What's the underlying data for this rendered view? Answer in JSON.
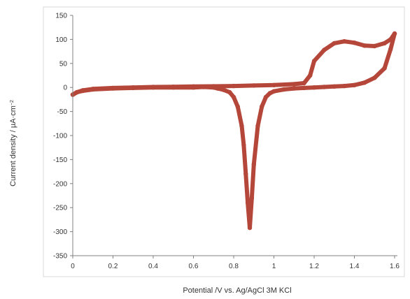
{
  "chart_data": {
    "type": "line",
    "title": "",
    "xlabel": "Potential /V vs. Ag/AgCl 3M KCl",
    "ylabel": "Current density / µA·cm",
    "ylabel_superscript": "−2",
    "xlim": [
      0,
      1.7
    ],
    "ylim": [
      -350,
      150
    ],
    "x_ticks": [
      0,
      0.2,
      0.4,
      0.6,
      0.8,
      1,
      1.2,
      1.4,
      1.6
    ],
    "x_tick_labels": [
      "0",
      "0.2",
      "0.4",
      "0.6",
      "0.8",
      "1",
      "1.2",
      "1.4",
      "1.6"
    ],
    "y_ticks": [
      150,
      100,
      50,
      0,
      -50,
      -100,
      -150,
      -200,
      -250,
      -300,
      -350
    ],
    "y_tick_labels": [
      "150",
      "100",
      "50",
      "0",
      "-50",
      "-100",
      "-150",
      "-200",
      "-250",
      "-300",
      "-350"
    ],
    "grid": false,
    "legend": "none",
    "colors": {
      "series": "#b5473a",
      "axis": "#808080",
      "frame": "#d9d9d9"
    },
    "series": [
      {
        "sweep": "anodic",
        "x": [
          0.0,
          0.02,
          0.05,
          0.1,
          0.2,
          0.3,
          0.4,
          0.5,
          0.6,
          0.7,
          0.8,
          0.9,
          1.0,
          1.1,
          1.15,
          1.18,
          1.2,
          1.25,
          1.3,
          1.35,
          1.4,
          1.45,
          1.5,
          1.55,
          1.58,
          1.6
        ],
        "y": [
          -15,
          -10,
          -6,
          -3,
          -1,
          0,
          1,
          1.5,
          2,
          2.5,
          3,
          4,
          5,
          7,
          9,
          25,
          55,
          78,
          92,
          96,
          93,
          87,
          86,
          92,
          100,
          112
        ]
      },
      {
        "sweep": "cathodic",
        "x": [
          1.6,
          1.58,
          1.55,
          1.5,
          1.45,
          1.4,
          1.35,
          1.3,
          1.25,
          1.2,
          1.15,
          1.1,
          1.05,
          1.0,
          0.98,
          0.96,
          0.94,
          0.92,
          0.9,
          0.89,
          0.88,
          0.87,
          0.86,
          0.85,
          0.84,
          0.82,
          0.8,
          0.78,
          0.75,
          0.72,
          0.7,
          0.65,
          0.6,
          0.5,
          0.4,
          0.3,
          0.2,
          0.1,
          0.05,
          0.02,
          0.0
        ],
        "y": [
          112,
          80,
          40,
          20,
          10,
          5,
          3,
          2,
          1,
          0,
          -1,
          -2,
          -4,
          -8,
          -12,
          -20,
          -40,
          -80,
          -160,
          -230,
          -292,
          -240,
          -180,
          -120,
          -80,
          -40,
          -20,
          -10,
          -5,
          -2,
          0,
          1,
          0,
          0,
          0,
          -1,
          -2,
          -4,
          -7,
          -10,
          -15
        ]
      }
    ]
  }
}
